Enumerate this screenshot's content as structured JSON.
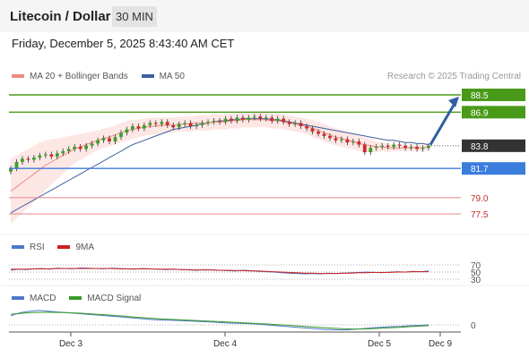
{
  "header": {
    "title": "Litecoin / Dollar",
    "interval": "30 MIN",
    "datetime": "Friday, December 5, 2025 8:43:40 AM CET"
  },
  "legend": {
    "ma20_label": "MA 20 + Bollinger Bands",
    "ma50_label": "MA 50",
    "credit": "Research © 2025 Trading Central"
  },
  "colors": {
    "ma20": "#ef8a80",
    "ma50": "#3c5f9e",
    "bollinger_fill": "#fde3e1",
    "resistance": "#4a9a1a",
    "support": "#3b7ddd",
    "support_red": "#e8838b",
    "current": "#333333",
    "arrow": "#2f5f9e",
    "rsi": "#4f79c7",
    "rsi_9ma": "#cc1f1f",
    "macd": "#4f79c7",
    "macd_signal": "#3a9a2a"
  },
  "levels": [
    {
      "value": 88.5,
      "label": "88.5",
      "kind": "resistance"
    },
    {
      "value": 86.9,
      "label": "86.9",
      "kind": "resistance"
    },
    {
      "value": 83.8,
      "label": "83.8",
      "kind": "current"
    },
    {
      "value": 81.7,
      "label": "81.7",
      "kind": "support"
    },
    {
      "value": 79.0,
      "label": "79.0",
      "kind": "support_red"
    },
    {
      "value": 77.5,
      "label": "77.5",
      "kind": "support_red"
    }
  ],
  "rsi_panel": {
    "legend": [
      "RSI",
      "9MA"
    ],
    "tick_labels": [
      "70",
      "50",
      "30"
    ]
  },
  "macd_panel": {
    "legend": [
      "MACD",
      "MACD Signal"
    ],
    "tick_labels": [
      "0"
    ]
  },
  "chart_data": {
    "type": "candlestick",
    "x_tick_labels": [
      "Dec 3",
      "Dec 4",
      "Dec 5",
      "Dec 9"
    ],
    "ylim": [
      76.0,
      90.0
    ],
    "grid": false,
    "legend_placement": "top-left",
    "close": [
      81.7,
      82.3,
      82.6,
      82.5,
      82.7,
      82.9,
      83.0,
      82.8,
      83.1,
      83.3,
      83.5,
      83.7,
      83.5,
      83.8,
      84.0,
      84.3,
      84.5,
      84.2,
      84.6,
      85.0,
      85.3,
      85.6,
      85.4,
      85.7,
      85.9,
      85.8,
      86.0,
      85.7,
      85.5,
      85.8,
      85.9,
      85.6,
      85.7,
      85.9,
      86.0,
      86.1,
      86.0,
      86.3,
      86.1,
      86.4,
      86.2,
      86.4,
      86.5,
      86.3,
      86.4,
      86.1,
      86.3,
      86.0,
      85.8,
      85.9,
      85.6,
      85.4,
      85.1,
      84.9,
      84.7,
      84.5,
      84.3,
      84.4,
      84.1,
      84.2,
      83.9,
      83.2,
      83.6,
      83.7,
      83.8,
      83.7,
      83.9,
      83.8,
      83.6,
      83.7,
      83.5,
      83.6,
      83.8
    ],
    "ma20": [
      79.6,
      80.0,
      80.4,
      80.8,
      81.2,
      81.6,
      82.0,
      82.3,
      82.6,
      82.9,
      83.2,
      83.5,
      83.7,
      83.9,
      84.1,
      84.3,
      84.5,
      84.6,
      84.8,
      85.0,
      85.2,
      85.3,
      85.4,
      85.5,
      85.6,
      85.6,
      85.7,
      85.7,
      85.7,
      85.8,
      85.8,
      85.8,
      85.9,
      85.9,
      85.9,
      86.0,
      86.0,
      86.0,
      86.1,
      86.1,
      86.2,
      86.2,
      86.2,
      86.2,
      86.2,
      86.1,
      86.1,
      86.0,
      85.9,
      85.8,
      85.7,
      85.6,
      85.4,
      85.2,
      85.0,
      84.8,
      84.6,
      84.5,
      84.3,
      84.2,
      84.0,
      83.9,
      83.8,
      83.7,
      83.7,
      83.6,
      83.6,
      83.6,
      83.6,
      83.6,
      83.6,
      83.6,
      83.7
    ],
    "ma50": [
      77.6,
      77.9,
      78.2,
      78.5,
      78.8,
      79.1,
      79.4,
      79.7,
      80.0,
      80.3,
      80.6,
      80.9,
      81.2,
      81.5,
      81.8,
      82.1,
      82.4,
      82.7,
      83.0,
      83.3,
      83.6,
      83.9,
      84.1,
      84.3,
      84.5,
      84.7,
      84.9,
      85.1,
      85.3,
      85.4,
      85.5,
      85.6,
      85.7,
      85.8,
      85.9,
      86.0,
      86.1,
      86.1,
      86.2,
      86.2,
      86.3,
      86.3,
      86.3,
      86.3,
      86.3,
      86.2,
      86.2,
      86.1,
      86.0,
      85.9,
      85.8,
      85.7,
      85.6,
      85.5,
      85.4,
      85.3,
      85.2,
      85.1,
      85.0,
      84.9,
      84.8,
      84.7,
      84.6,
      84.5,
      84.4,
      84.3,
      84.3,
      84.2,
      84.1,
      84.1,
      84.0,
      84.0,
      83.9
    ],
    "band_width": [
      3.0,
      2.9,
      2.8,
      2.7,
      2.6,
      2.5,
      2.3,
      2.1,
      1.9,
      1.7,
      1.5,
      1.3,
      1.2,
      1.1,
      1.0,
      0.9,
      0.9,
      0.9,
      0.9,
      0.9,
      0.9,
      0.9,
      0.8,
      0.8,
      0.8,
      0.8,
      0.7,
      0.7,
      0.7,
      0.7,
      0.7,
      0.7,
      0.7,
      0.7,
      0.7,
      0.7,
      0.7,
      0.7,
      0.7,
      0.7,
      0.7,
      0.7,
      0.7,
      0.7,
      0.7,
      0.7,
      0.7,
      0.7,
      0.7,
      0.7,
      0.7,
      0.7,
      0.8,
      0.8,
      0.8,
      0.8,
      0.8,
      0.8,
      0.7,
      0.7,
      0.7,
      0.7,
      0.6,
      0.5,
      0.4,
      0.4,
      0.3,
      0.3,
      0.3,
      0.3,
      0.3,
      0.3,
      0.3
    ],
    "rsi": [
      55,
      58,
      57,
      59,
      60,
      58,
      61,
      60,
      59,
      62,
      61,
      60,
      59,
      61,
      60,
      59,
      58,
      60,
      59,
      58,
      57,
      58,
      57,
      56,
      55,
      57,
      56,
      55,
      54,
      53,
      55,
      54,
      52,
      51,
      50,
      48,
      47,
      46,
      45,
      46,
      45,
      47,
      46,
      47,
      48,
      49,
      50,
      49,
      48,
      50,
      51,
      50,
      52,
      51,
      53
    ],
    "rsi_9ma": [
      58,
      58,
      58,
      59,
      59,
      59,
      60,
      60,
      60,
      60,
      60,
      60,
      60,
      60,
      59,
      59,
      59,
      59,
      59,
      58,
      58,
      58,
      57,
      57,
      56,
      56,
      56,
      55,
      55,
      54,
      54,
      53,
      53,
      52,
      51,
      50,
      49,
      48,
      47,
      47,
      46,
      46,
      46,
      47,
      47,
      48,
      48,
      49,
      49,
      49,
      50,
      50,
      51,
      51,
      51
    ],
    "macd": [
      0.6,
      0.8,
      0.9,
      0.95,
      0.9,
      0.85,
      0.8,
      0.75,
      0.7,
      0.65,
      0.6,
      0.55,
      0.5,
      0.45,
      0.4,
      0.35,
      0.32,
      0.3,
      0.28,
      0.25,
      0.22,
      0.2,
      0.15,
      0.12,
      0.1,
      0.08,
      0.05,
      0.0,
      -0.05,
      -0.1,
      -0.15,
      -0.2,
      -0.25,
      -0.3,
      -0.32,
      -0.33,
      -0.3,
      -0.25,
      -0.2,
      -0.15,
      -0.12,
      -0.1,
      -0.05,
      -0.03,
      0.0
    ],
    "macd_signal": [
      0.7,
      0.75,
      0.8,
      0.82,
      0.83,
      0.82,
      0.8,
      0.78,
      0.74,
      0.7,
      0.66,
      0.62,
      0.57,
      0.52,
      0.47,
      0.43,
      0.39,
      0.36,
      0.33,
      0.3,
      0.27,
      0.24,
      0.21,
      0.18,
      0.15,
      0.12,
      0.09,
      0.06,
      0.02,
      -0.02,
      -0.06,
      -0.1,
      -0.14,
      -0.18,
      -0.22,
      -0.25,
      -0.27,
      -0.27,
      -0.25,
      -0.22,
      -0.19,
      -0.16,
      -0.12,
      -0.08,
      -0.05
    ]
  }
}
